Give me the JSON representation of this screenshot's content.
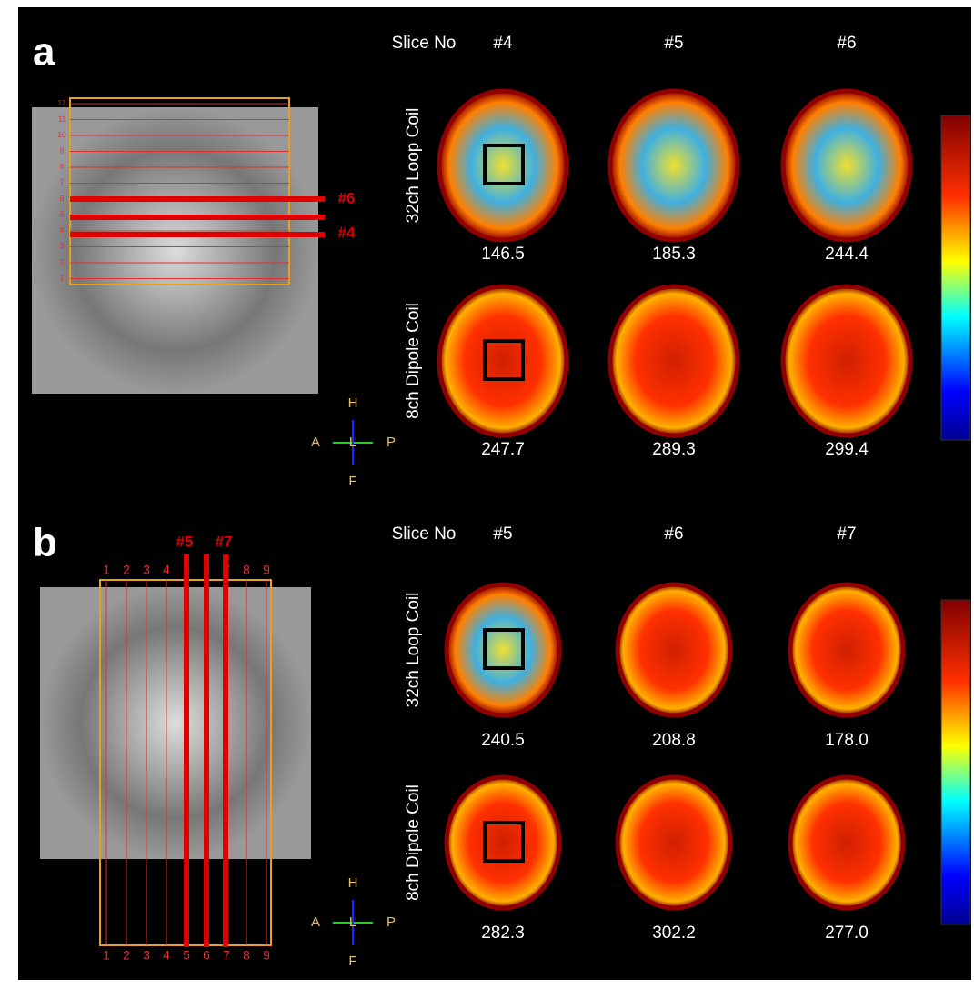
{
  "panels": [
    {
      "label": "a",
      "slice_header": "Slice No",
      "slices": [
        "#4",
        "#5",
        "#6"
      ],
      "rows": [
        {
          "label": "32ch Loop Coil",
          "values": [
            "146.5",
            "185.3",
            "244.4"
          ]
        },
        {
          "label": "8ch Dipole Coil",
          "values": [
            "247.7",
            "289.3",
            "299.4"
          ]
        }
      ],
      "localizer": {
        "markers": [
          "#6",
          "#4"
        ],
        "line_numbers": [
          "12",
          "11",
          "10",
          "9",
          "8",
          "7",
          "6",
          "5",
          "4",
          "3",
          "2",
          "1"
        ]
      },
      "orientation": {
        "top": "H",
        "left": "A",
        "center": "L",
        "right": "P",
        "bottom": "F"
      }
    },
    {
      "label": "b",
      "slice_header": "Slice No",
      "slices": [
        "#5",
        "#6",
        "#7"
      ],
      "rows": [
        {
          "label": "32ch Loop Coil",
          "values": [
            "240.5",
            "208.8",
            "178.0"
          ]
        },
        {
          "label": "8ch Dipole Coil",
          "values": [
            "282.3",
            "302.2",
            "277.0"
          ]
        }
      ],
      "localizer": {
        "markers": [
          "#5",
          "#7"
        ],
        "line_numbers": [
          "1",
          "2",
          "3",
          "4",
          "5",
          "6",
          "7",
          "8",
          "9"
        ]
      },
      "orientation": {
        "top": "H",
        "left": "A",
        "center": "L",
        "right": "P",
        "bottom": "F"
      }
    }
  ]
}
